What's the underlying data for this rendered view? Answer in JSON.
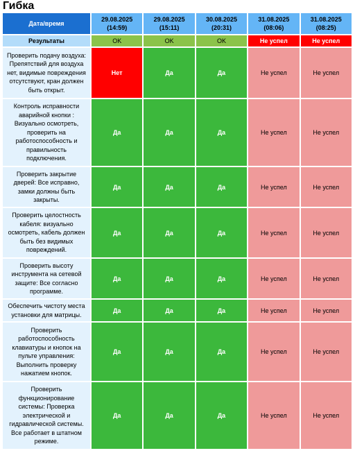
{
  "page_title": "Гибка",
  "header_label": "Дата/время",
  "dates": [
    {
      "date": "29.08.2025",
      "time": "(14:59)"
    },
    {
      "date": "29.08.2025",
      "time": "(15:11)"
    },
    {
      "date": "30.08.2025",
      "time": "(20:31)"
    },
    {
      "date": "31.08.2025",
      "time": "(08:06)"
    },
    {
      "date": "31.08.2025",
      "time": "(08:25)"
    }
  ],
  "results_label": "Результаты",
  "results": [
    {
      "text": "OK",
      "status": "ok"
    },
    {
      "text": "OK",
      "status": "ok"
    },
    {
      "text": "OK",
      "status": "ok"
    },
    {
      "text": "Не успел",
      "status": "fail"
    },
    {
      "text": "Не успел",
      "status": "fail"
    }
  ],
  "rows": [
    {
      "question": "Проверить подачу воздуха: Препятствий для воздуха нет, видимые повреждения отсутствуют, кран должен быть открыт.",
      "height": 72,
      "cells": [
        {
          "text": "Нет",
          "status": "no"
        },
        {
          "text": "Да",
          "status": "yes"
        },
        {
          "text": "Да",
          "status": "yes"
        },
        {
          "text": "Не успел",
          "status": "miss"
        },
        {
          "text": "Не успел",
          "status": "miss"
        }
      ]
    },
    {
      "question": "Контроль исправности аварийной кнопки : Визуально осмотреть, проверить на работоспособность и правильность подключения.",
      "height": 96,
      "cells": [
        {
          "text": "Да",
          "status": "yes"
        },
        {
          "text": "Да",
          "status": "yes"
        },
        {
          "text": "Да",
          "status": "yes"
        },
        {
          "text": "Не успел",
          "status": "miss"
        },
        {
          "text": "Не успел",
          "status": "miss"
        }
      ]
    },
    {
      "question": "Проверить закрытие дверей: Все исправно, замки должны быть закрыты.",
      "height": 57,
      "cells": [
        {
          "text": "Да",
          "status": "yes"
        },
        {
          "text": "Да",
          "status": "yes"
        },
        {
          "text": "Да",
          "status": "yes"
        },
        {
          "text": "Не успел",
          "status": "miss"
        },
        {
          "text": "Не успел",
          "status": "miss"
        }
      ]
    },
    {
      "question": "Проверить целостность кабеля: визуально осмотреть, кабель должен быть без видимых повреждений.",
      "height": 71,
      "cells": [
        {
          "text": "Да",
          "status": "yes"
        },
        {
          "text": "Да",
          "status": "yes"
        },
        {
          "text": "Да",
          "status": "yes"
        },
        {
          "text": "Не успел",
          "status": "miss"
        },
        {
          "text": "Не успел",
          "status": "miss"
        }
      ]
    },
    {
      "question": "Проверить высоту инструмента на сетевой защите: Все согласно программе.",
      "height": 57,
      "cells": [
        {
          "text": "Да",
          "status": "yes"
        },
        {
          "text": "Да",
          "status": "yes"
        },
        {
          "text": "Да",
          "status": "yes"
        },
        {
          "text": "Не успел",
          "status": "miss"
        },
        {
          "text": "Не успел",
          "status": "miss"
        }
      ]
    },
    {
      "question": "Обеспечить чистоту места установки для матрицы.",
      "height": 31,
      "cells": [
        {
          "text": "Да",
          "status": "yes"
        },
        {
          "text": "Да",
          "status": "yes"
        },
        {
          "text": "Да",
          "status": "yes"
        },
        {
          "text": "Не успел",
          "status": "miss"
        },
        {
          "text": "Не успел",
          "status": "miss"
        }
      ]
    },
    {
      "question": "Проверить работоспособность клавиатуры и кнопок на пульте управления: Выполнить проверку нажатием кнопок.",
      "height": 84,
      "cells": [
        {
          "text": "Да",
          "status": "yes"
        },
        {
          "text": "Да",
          "status": "yes"
        },
        {
          "text": "Да",
          "status": "yes"
        },
        {
          "text": "Не успел",
          "status": "miss"
        },
        {
          "text": "Не успел",
          "status": "miss"
        }
      ]
    },
    {
      "question": "Проверить функционирование системы: Проверка электрической и гидравлической системы. Все работает в штатном режиме.",
      "height": 96,
      "cells": [
        {
          "text": "Да",
          "status": "yes"
        },
        {
          "text": "Да",
          "status": "yes"
        },
        {
          "text": "Да",
          "status": "yes"
        },
        {
          "text": "Не успел",
          "status": "miss"
        },
        {
          "text": "Не успел",
          "status": "miss"
        }
      ]
    }
  ]
}
